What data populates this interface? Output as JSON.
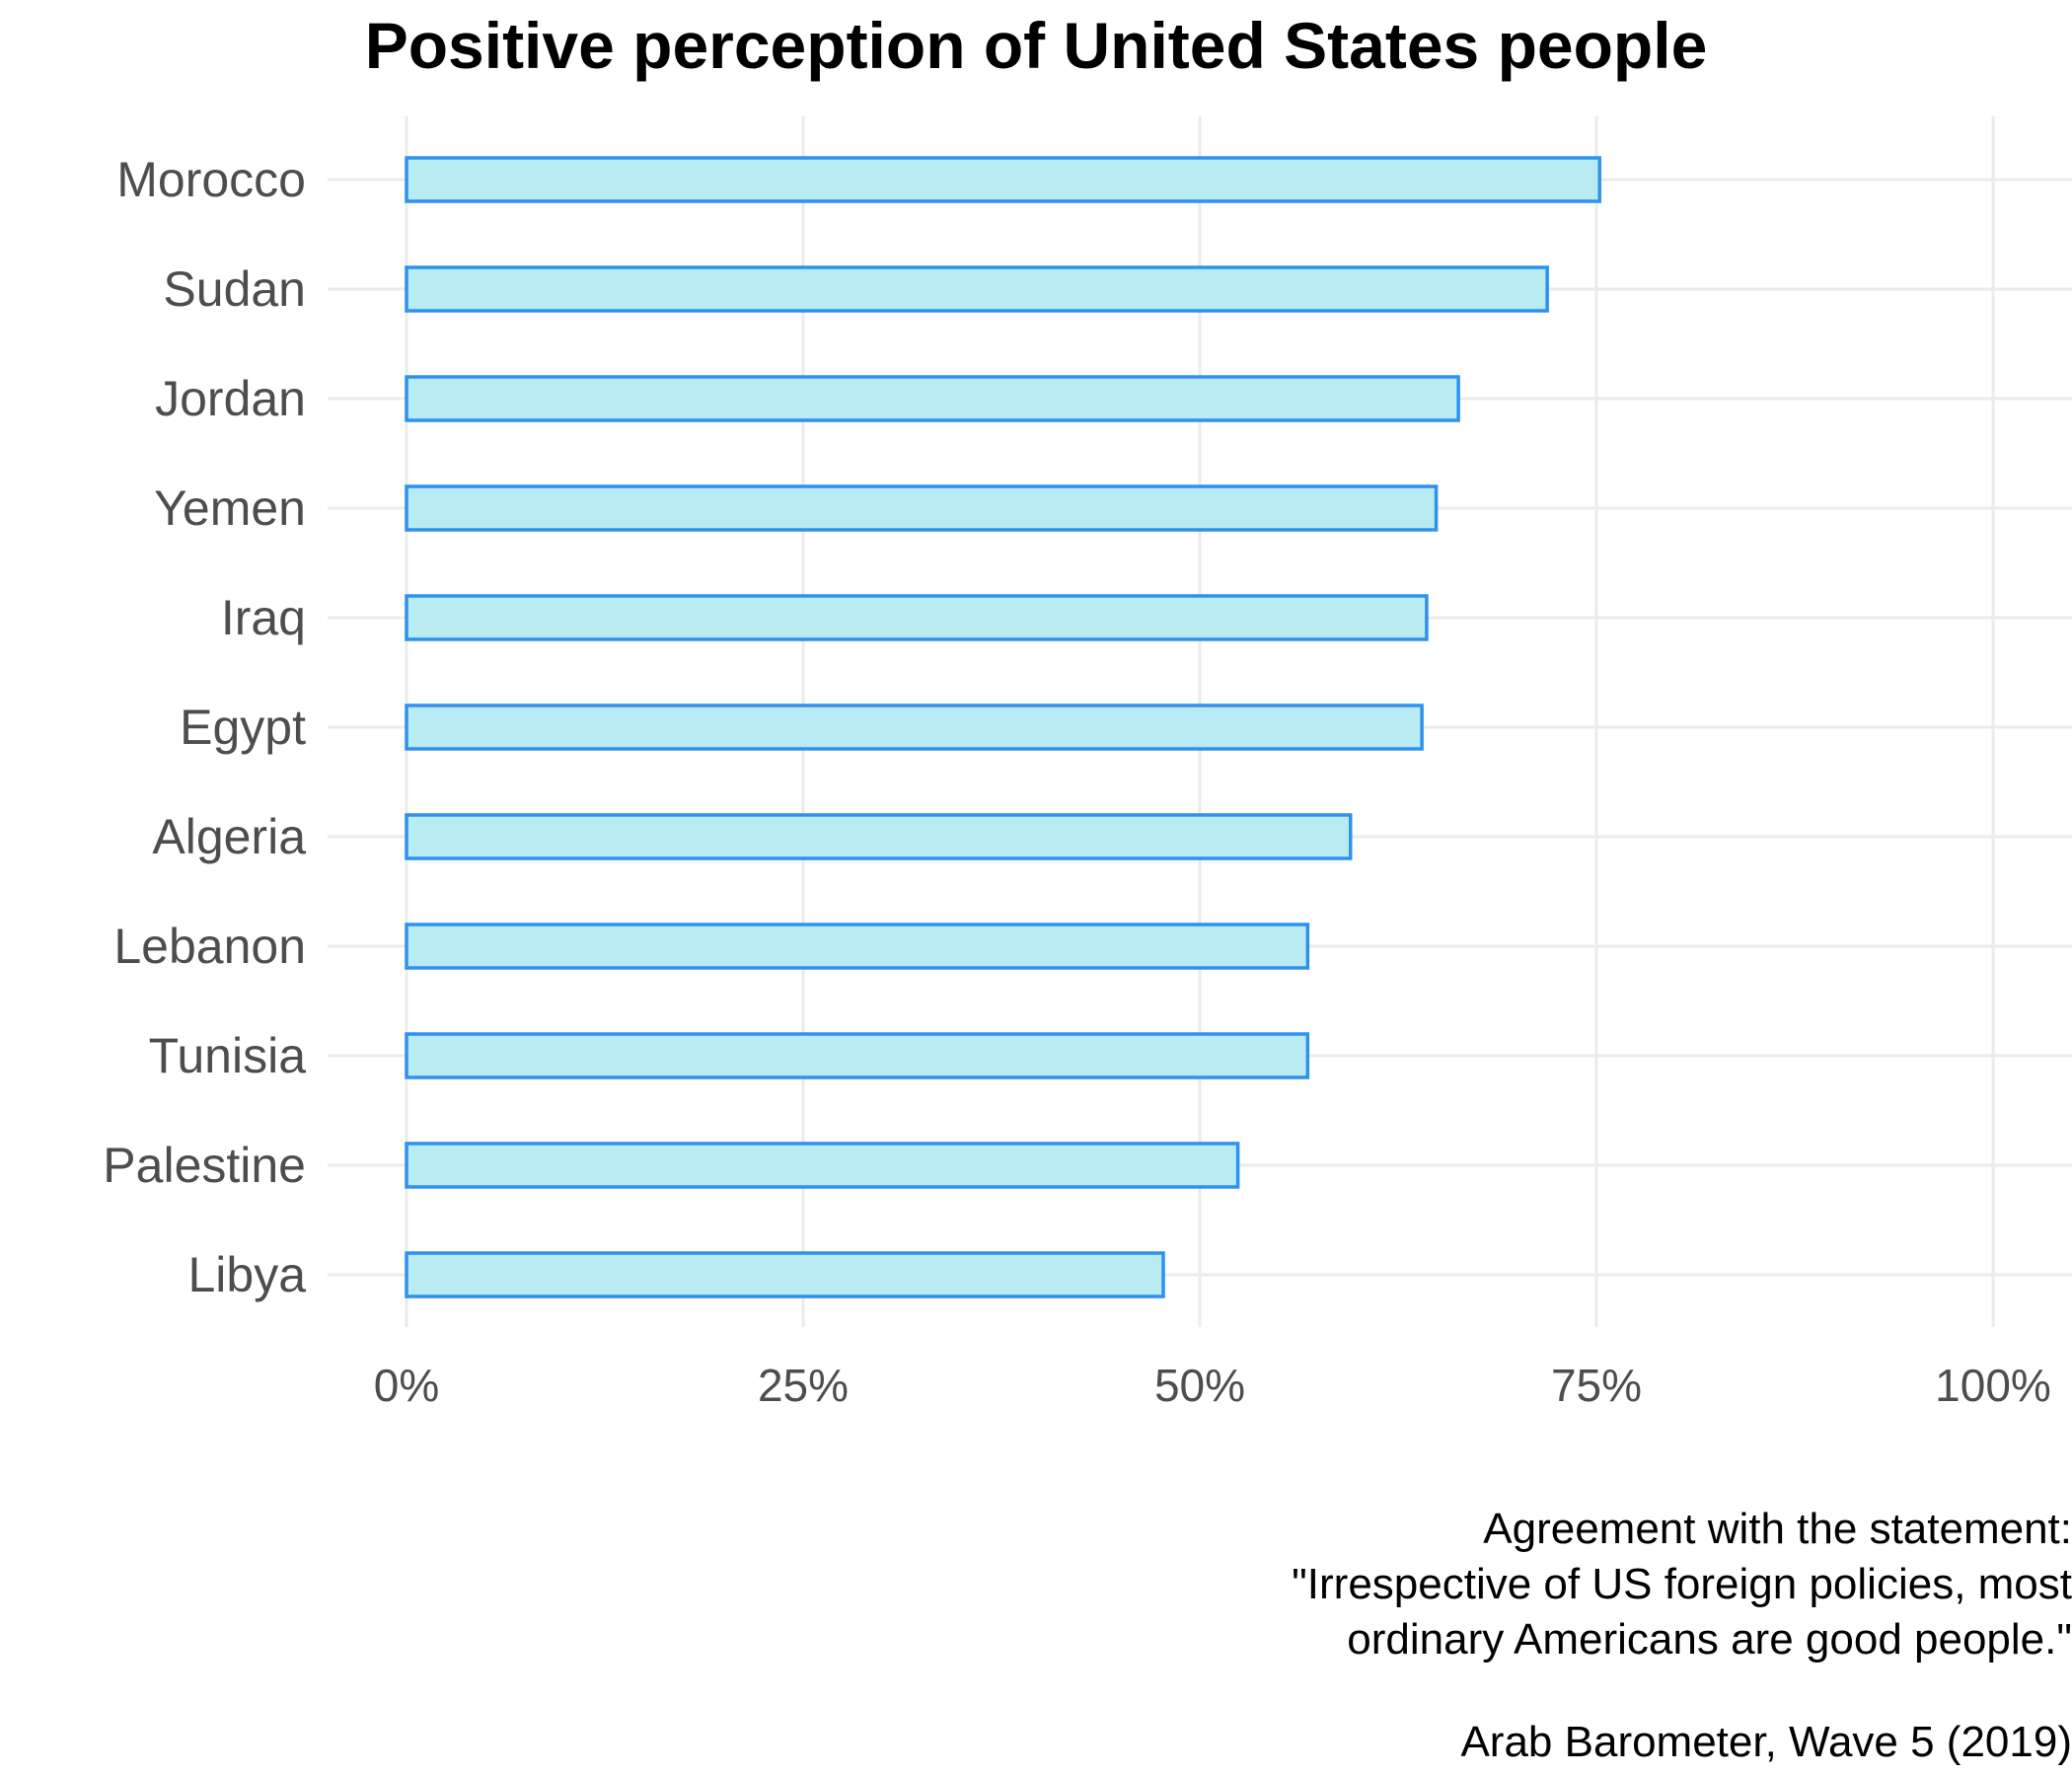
{
  "chart_data": {
    "type": "bar",
    "orientation": "horizontal",
    "title": "Positive perception of United States people",
    "categories": [
      "Morocco",
      "Sudan",
      "Jordan",
      "Yemen",
      "Iraq",
      "Egypt",
      "Algeria",
      "Lebanon",
      "Tunisia",
      "Palestine",
      "Libya"
    ],
    "values": [
      75.2,
      71.9,
      66.3,
      64.9,
      64.3,
      64.0,
      59.5,
      56.8,
      56.8,
      52.4,
      47.7
    ],
    "value_unit": "%",
    "xlim": [
      0,
      100
    ],
    "xticks": [
      "0%",
      "25%",
      "50%",
      "75%",
      "100%"
    ],
    "xtick_values": [
      0,
      25,
      50,
      75,
      100
    ],
    "xlabel": "",
    "ylabel": "",
    "grid": true,
    "bar_fill": "#b9ebf2",
    "bar_stroke": "#2e91f0",
    "gridline_color": "#ebebeb",
    "text_color": "#4d4d4d"
  },
  "caption": {
    "lines": [
      "Agreement with the statement:",
      "\"Irrespective of US foreign policies, most",
      "ordinary Americans are good people.\""
    ],
    "source": "Arab Barometer, Wave 5 (2019)"
  }
}
